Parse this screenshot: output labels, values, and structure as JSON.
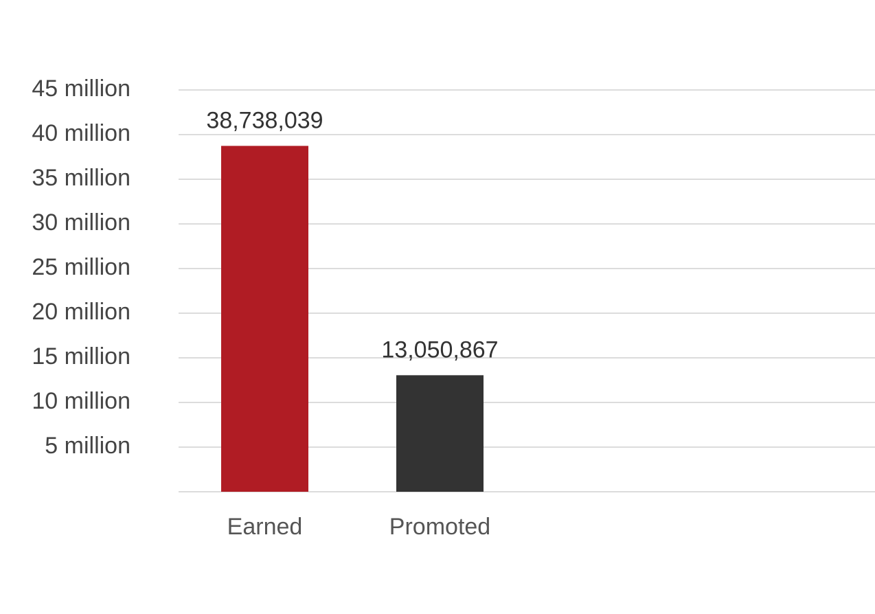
{
  "chart_data": {
    "type": "bar",
    "categories": [
      "Earned",
      "Promoted"
    ],
    "values": [
      38738039,
      13050867
    ],
    "value_labels": [
      "38,738,039",
      "13,050,867"
    ],
    "colors": [
      "#b01c24",
      "#333333"
    ],
    "ylim": [
      0,
      45000000
    ],
    "yticks": [
      {
        "value": 5000000,
        "label": "5 million"
      },
      {
        "value": 10000000,
        "label": "10 million"
      },
      {
        "value": 15000000,
        "label": "15 million"
      },
      {
        "value": 20000000,
        "label": "20 million"
      },
      {
        "value": 25000000,
        "label": "25 million"
      },
      {
        "value": 30000000,
        "label": "30 million"
      },
      {
        "value": 35000000,
        "label": "35 million"
      },
      {
        "value": 40000000,
        "label": "40 million"
      },
      {
        "value": 45000000,
        "label": "45 million"
      }
    ],
    "grid": true
  }
}
